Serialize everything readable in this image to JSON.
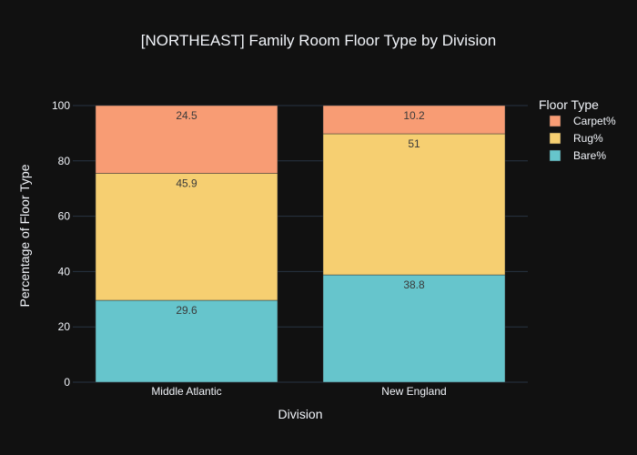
{
  "chart_data": {
    "type": "bar",
    "stacked": true,
    "title": "[NORTHEAST] Family Room Floor Type by Division",
    "xlabel": "Division",
    "ylabel": "Percentage of Floor Type",
    "categories": [
      "Middle Atlantic",
      "New England"
    ],
    "ylim": [
      0,
      100
    ],
    "yticks": [
      0,
      20,
      40,
      60,
      80,
      100
    ],
    "grid": true,
    "legend": {
      "title": "Floor Type",
      "placement": "top-right"
    },
    "series": [
      {
        "name": "Bare%",
        "values": [
          29.6,
          38.8
        ],
        "labels": [
          "29.6",
          "38.8"
        ],
        "color": "#66c5cc"
      },
      {
        "name": "Rug%",
        "values": [
          45.9,
          51
        ],
        "labels": [
          "45.9",
          "51"
        ],
        "color": "#f6cf71"
      },
      {
        "name": "Carpet%",
        "values": [
          24.5,
          10.2
        ],
        "labels": [
          "24.5",
          "10.2"
        ],
        "color": "#f89c74"
      }
    ],
    "legend_order": [
      "Carpet%",
      "Rug%",
      "Bare%"
    ],
    "colors": {
      "background": "#111111",
      "grid": "#283442",
      "text": "#f2f5fa",
      "bar_outline": "#333333",
      "data_label": "#3a3a3a"
    }
  }
}
